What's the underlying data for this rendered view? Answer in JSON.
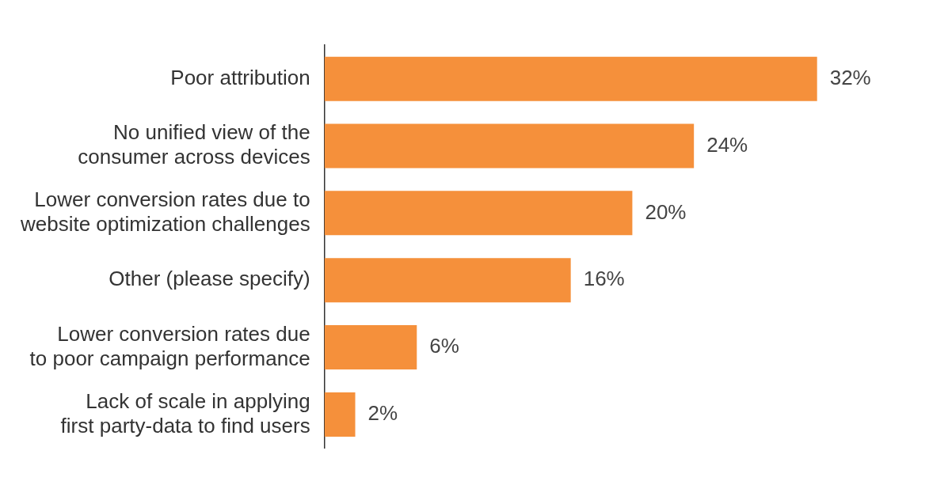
{
  "chart_data": {
    "type": "bar",
    "orientation": "horizontal",
    "categories": [
      "Poor attribution",
      "No unified view of the consumer across devices",
      "Lower conversion rates due to website optimization challenges",
      "Other (please specify)",
      "Lower conversion rates due to poor campaign performance",
      "Lack of scale in applying first party-data to find users"
    ],
    "values": [
      32,
      24,
      20,
      16,
      6,
      2
    ],
    "value_labels": [
      "32%",
      "24%",
      "20%",
      "16%",
      "6%",
      "2%"
    ],
    "color": "#f5903b",
    "tick_labels": "y"
  }
}
